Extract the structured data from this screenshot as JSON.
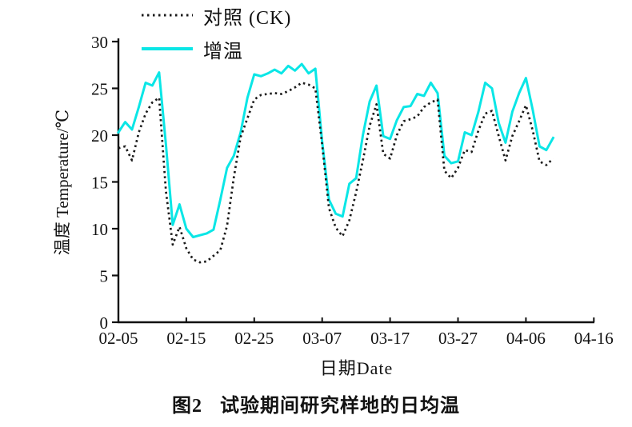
{
  "figure": {
    "caption_prefix": "图2",
    "caption_text": "试验期间研究样地的日均温"
  },
  "chart_data": {
    "type": "line",
    "title": "",
    "xlabel": "日期Date",
    "ylabel": "温度 Temperature/℃",
    "x_tick_labels": [
      "02-05",
      "02-15",
      "02-25",
      "03-07",
      "03-17",
      "03-27",
      "04-06",
      "04-16"
    ],
    "x_tick_days": [
      0,
      10,
      20,
      30,
      40,
      50,
      60,
      70
    ],
    "y_ticks": [
      0,
      5,
      10,
      15,
      20,
      25,
      30
    ],
    "ylim": [
      0,
      30
    ],
    "xlim_days": [
      0,
      70
    ],
    "grid": false,
    "legend_position": "top-left",
    "dates": [
      "02-05",
      "02-06",
      "02-07",
      "02-08",
      "02-09",
      "02-10",
      "02-11",
      "02-12",
      "02-13",
      "02-14",
      "02-15",
      "02-16",
      "02-17",
      "02-18",
      "02-19",
      "02-20",
      "02-21",
      "02-22",
      "02-23",
      "02-24",
      "02-25",
      "02-26",
      "02-27",
      "02-28",
      "03-01",
      "03-02",
      "03-03",
      "03-04",
      "03-05",
      "03-06",
      "03-07",
      "03-08",
      "03-09",
      "03-10",
      "03-11",
      "03-12",
      "03-13",
      "03-14",
      "03-15",
      "03-16",
      "03-17",
      "03-18",
      "03-19",
      "03-20",
      "03-21",
      "03-22",
      "03-23",
      "03-24",
      "03-25",
      "03-26",
      "03-27",
      "03-28",
      "03-29",
      "03-30",
      "03-31",
      "04-01",
      "04-02",
      "04-03",
      "04-04",
      "04-05",
      "04-06",
      "04-07",
      "04-08",
      "04-09",
      "04-10"
    ],
    "series": [
      {
        "name": "对照 (CK)",
        "key": "control",
        "line_style": "dotted",
        "color": "#1a1a1a",
        "values": [
          18.6,
          18.8,
          17.3,
          20.3,
          22.3,
          23.5,
          24.0,
          14.0,
          8.3,
          10.2,
          7.9,
          6.7,
          6.4,
          6.5,
          7.1,
          7.7,
          10.3,
          15.5,
          19.8,
          21.8,
          23.8,
          24.3,
          24.4,
          24.5,
          24.4,
          24.7,
          25.1,
          25.6,
          25.4,
          25.0,
          19.0,
          12.2,
          10.1,
          9.2,
          10.9,
          13.9,
          17.3,
          21.0,
          23.3,
          18.0,
          17.5,
          20.0,
          21.5,
          21.7,
          22.0,
          23.0,
          23.5,
          23.8,
          16.2,
          15.4,
          16.5,
          18.4,
          18.2,
          20.5,
          22.3,
          22.6,
          19.9,
          17.3,
          19.9,
          21.5,
          23.2,
          20.5,
          17.2,
          16.8,
          17.5
        ]
      },
      {
        "name": "增温",
        "key": "warming",
        "line_style": "solid",
        "color": "#0ae6e6",
        "values": [
          20.3,
          21.4,
          20.6,
          23.0,
          25.6,
          25.3,
          26.7,
          19.0,
          10.4,
          12.6,
          10.0,
          9.1,
          9.3,
          9.5,
          9.9,
          13.1,
          16.5,
          17.8,
          20.3,
          24.0,
          26.5,
          26.3,
          26.6,
          27.0,
          26.6,
          27.4,
          26.9,
          27.6,
          26.6,
          27.1,
          19.3,
          13.1,
          11.6,
          11.3,
          14.8,
          15.4,
          20.0,
          23.6,
          25.3,
          19.9,
          19.6,
          21.6,
          23.0,
          23.1,
          24.4,
          24.2,
          25.6,
          24.5,
          17.8,
          17.0,
          17.2,
          20.3,
          20.0,
          22.5,
          25.6,
          25.0,
          21.3,
          19.2,
          22.5,
          24.5,
          26.1,
          22.7,
          18.8,
          18.4,
          19.7
        ]
      }
    ]
  }
}
